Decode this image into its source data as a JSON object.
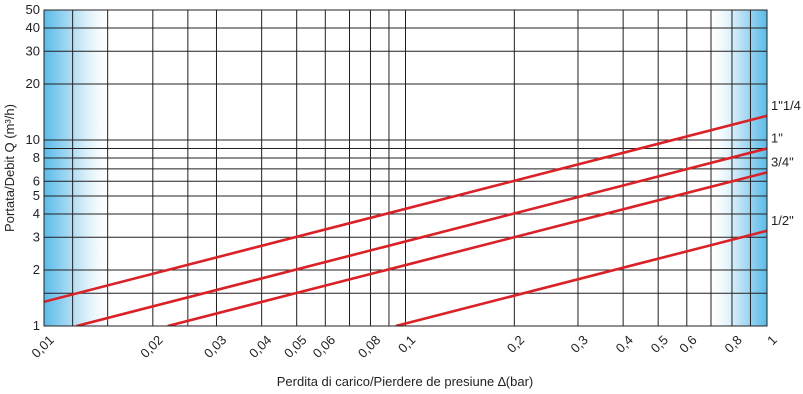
{
  "chart_data": {
    "type": "line",
    "xscale": "log",
    "yscale": "log",
    "xlim": [
      0.01,
      1
    ],
    "ylim": [
      1,
      50
    ],
    "xlabel": "Perdita di carico/Pierdere de presiune ∆(bar)",
    "ylabel": "Portata/Debit Q (m³/h)",
    "x_ticks": [
      {
        "value": 0.01,
        "label": "0,01"
      },
      {
        "value": 0.02,
        "label": "0,02"
      },
      {
        "value": 0.03,
        "label": "0,03"
      },
      {
        "value": 0.04,
        "label": "0,04"
      },
      {
        "value": 0.05,
        "label": "0,05"
      },
      {
        "value": 0.06,
        "label": "0,06"
      },
      {
        "value": 0.08,
        "label": "0,08"
      },
      {
        "value": 0.1,
        "label": "0,1"
      },
      {
        "value": 0.2,
        "label": "0,2"
      },
      {
        "value": 0.3,
        "label": "0,3"
      },
      {
        "value": 0.4,
        "label": "0,4"
      },
      {
        "value": 0.5,
        "label": "0,5"
      },
      {
        "value": 0.6,
        "label": "0,6"
      },
      {
        "value": 0.8,
        "label": "0,8"
      },
      {
        "value": 1,
        "label": "1"
      }
    ],
    "y_ticks": [
      {
        "value": 1,
        "label": "1"
      },
      {
        "value": 2,
        "label": "2"
      },
      {
        "value": 3,
        "label": "3"
      },
      {
        "value": 4,
        "label": "4"
      },
      {
        "value": 5,
        "label": "5"
      },
      {
        "value": 6,
        "label": "6"
      },
      {
        "value": 8,
        "label": "8"
      },
      {
        "value": 10,
        "label": "10"
      },
      {
        "value": 20,
        "label": "20"
      },
      {
        "value": 30,
        "label": "30"
      },
      {
        "value": 40,
        "label": "40"
      },
      {
        "value": 50,
        "label": "50"
      }
    ],
    "x_gridlines": [
      0.01,
      0.012,
      0.015,
      0.02,
      0.025,
      0.03,
      0.04,
      0.05,
      0.06,
      0.07,
      0.08,
      0.09,
      0.1,
      0.2,
      0.3,
      0.4,
      0.5,
      0.6,
      0.7,
      0.8,
      0.9,
      1
    ],
    "y_gridlines": [
      1,
      1.5,
      2,
      3,
      4,
      5,
      6,
      7,
      8,
      9,
      10,
      20,
      30,
      40,
      50
    ],
    "grid": true,
    "series": [
      {
        "name": "1\"1/4",
        "x": [
          0.01,
          1
        ],
        "y": [
          1.35,
          13.5
        ]
      },
      {
        "name": "1\"",
        "x": [
          0.0123,
          1
        ],
        "y": [
          1,
          9
        ]
      },
      {
        "name": "3/4\"",
        "x": [
          0.022,
          1
        ],
        "y": [
          1,
          6.7
        ]
      },
      {
        "name": "1/2\"",
        "x": [
          0.094,
          1
        ],
        "y": [
          1,
          3.25
        ]
      }
    ],
    "colors": {
      "line": "#da2128",
      "grid": "#231f20",
      "band": "#4cb4e6"
    }
  }
}
